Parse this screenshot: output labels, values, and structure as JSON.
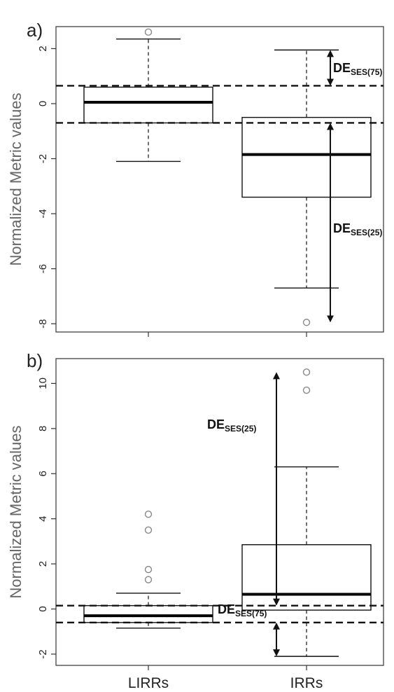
{
  "chart_data": [
    {
      "type": "box",
      "panel_label": "a)",
      "ylabel": "Normalized Metric values",
      "ylim": [
        -8.3,
        2.8
      ],
      "yticks": [
        -8,
        -6,
        -4,
        -2,
        0,
        2
      ],
      "categories": [
        "LIRRs",
        "IRRs"
      ],
      "boxes": [
        {
          "category": "LIRRs",
          "whisker_low": -2.1,
          "q1": -0.7,
          "median": 0.05,
          "q3": 0.6,
          "whisker_high": 2.35,
          "outliers": [
            2.6
          ]
        },
        {
          "category": "IRRs",
          "whisker_low": -6.7,
          "q1": -3.4,
          "median": -1.85,
          "q3": -0.5,
          "whisker_high": 1.95,
          "outliers": [
            -7.95
          ]
        }
      ],
      "reference_lines": [
        0.65,
        -0.7
      ],
      "annotations": [
        {
          "main": "DE",
          "sub": "SES(75)",
          "from": 1.95,
          "to": 0.65
        },
        {
          "main": "DE",
          "sub": "SES(25)",
          "from": -0.7,
          "to": -7.95
        }
      ]
    },
    {
      "type": "box",
      "panel_label": "b)",
      "ylabel": "Normalized Metric values",
      "ylim": [
        -2.5,
        11.1
      ],
      "yticks": [
        -2,
        0,
        2,
        4,
        6,
        8,
        10
      ],
      "categories": [
        "LIRRs",
        "IRRs"
      ],
      "category_labels": [
        "LIRRs",
        "IRRs"
      ],
      "boxes": [
        {
          "category": "LIRRs",
          "whisker_low": -0.85,
          "q1": -0.6,
          "median": -0.3,
          "q3": 0.15,
          "whisker_high": 0.7,
          "outliers": [
            1.3,
            1.75,
            3.5,
            4.2
          ]
        },
        {
          "category": "IRRs",
          "whisker_low": -2.1,
          "q1": -0.05,
          "median": 0.65,
          "q3": 2.85,
          "whisker_high": 6.3,
          "outliers": [
            9.7,
            10.5
          ]
        }
      ],
      "reference_lines": [
        0.15,
        -0.6
      ],
      "annotations": [
        {
          "main": "DE",
          "sub": "SES(25)",
          "from": 10.5,
          "to": 0.15
        },
        {
          "main": "DE",
          "sub": "SES(75)",
          "from": -0.6,
          "to": -2.1
        }
      ]
    }
  ]
}
